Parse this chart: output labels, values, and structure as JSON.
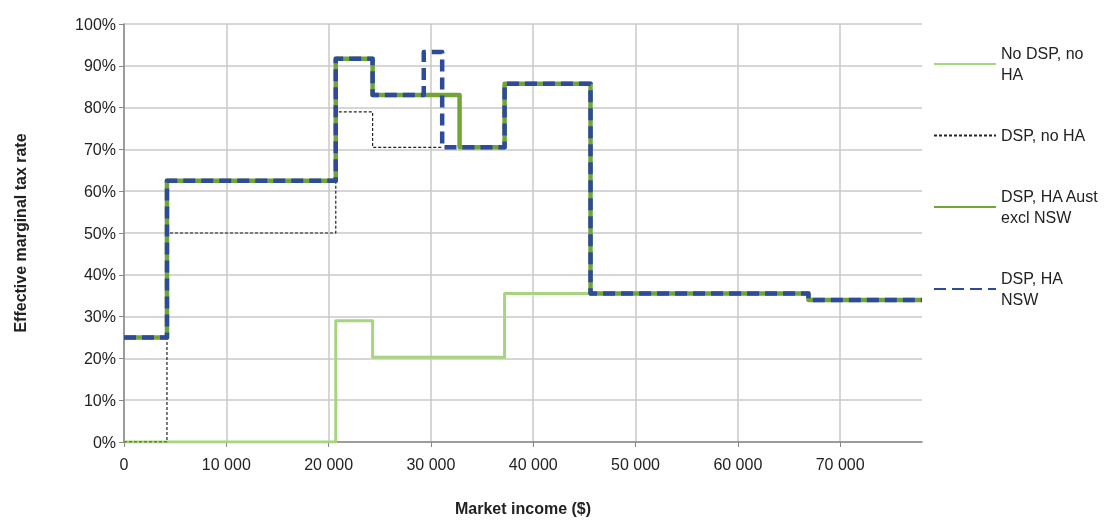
{
  "chart_data": {
    "type": "step",
    "xlabel": "Market income ($)",
    "ylabel": "Effective marginal tax rate",
    "xlim": [
      0,
      78000
    ],
    "xticks": [
      0,
      {
        "value": 10000,
        "label": "10 000"
      },
      {
        "value": 20000,
        "label": "20 000"
      },
      {
        "value": 30000,
        "label": "30 000"
      },
      {
        "value": 40000,
        "label": "40 000"
      },
      {
        "value": 50000,
        "label": "50 000"
      },
      {
        "value": 60000,
        "label": "60 000"
      },
      {
        "value": 70000,
        "label": "70 000"
      }
    ],
    "ylim": [
      0,
      100
    ],
    "yticks": [
      {
        "value": 0,
        "label": "0%"
      },
      {
        "value": 10,
        "label": "10%"
      },
      {
        "value": 20,
        "label": "20%"
      },
      {
        "value": 30,
        "label": "30%"
      },
      {
        "value": 40,
        "label": "40%"
      },
      {
        "value": 50,
        "label": "50%"
      },
      {
        "value": 60,
        "label": "60%"
      },
      {
        "value": 70,
        "label": "70%"
      },
      {
        "value": 80,
        "label": "80%"
      },
      {
        "value": 90,
        "label": "90%"
      },
      {
        "value": 100,
        "label": "100%"
      }
    ],
    "grid": true,
    "legend": "right",
    "marker": "none",
    "series": [
      {
        "name": "No DSP, no HA",
        "color": "#a9d47f",
        "line_style": "solid",
        "x": [
          0,
          20700,
          24300,
          37200,
          45600
        ],
        "values": [
          0,
          29,
          20.3,
          35.5,
          35.5
        ]
      },
      {
        "name": "DSP, no HA",
        "color": "#222222",
        "line_style": "dotted",
        "x": [
          0,
          4200,
          20700,
          24300,
          31100
        ],
        "values": [
          0,
          50,
          79,
          70.5,
          70.5
        ]
      },
      {
        "name": "DSP, HA Aust excl NSW",
        "color": "#72a535",
        "line_style": "solid",
        "x": [
          0,
          4200,
          20700,
          24300,
          32800,
          37200,
          45600,
          66900,
          78000
        ],
        "values": [
          25,
          62.5,
          91.7,
          83,
          70.5,
          85.7,
          35.5,
          34,
          34
        ]
      },
      {
        "name": "DSP, HA NSW",
        "color": "#2e4a9b",
        "line_style": "dashed",
        "x": [
          0,
          4200,
          20700,
          24300,
          29300,
          31100,
          37200,
          45600,
          66900,
          78000
        ],
        "values": [
          25,
          62.5,
          91.7,
          83,
          93.3,
          70.5,
          85.7,
          35.5,
          34,
          34
        ]
      }
    ]
  }
}
